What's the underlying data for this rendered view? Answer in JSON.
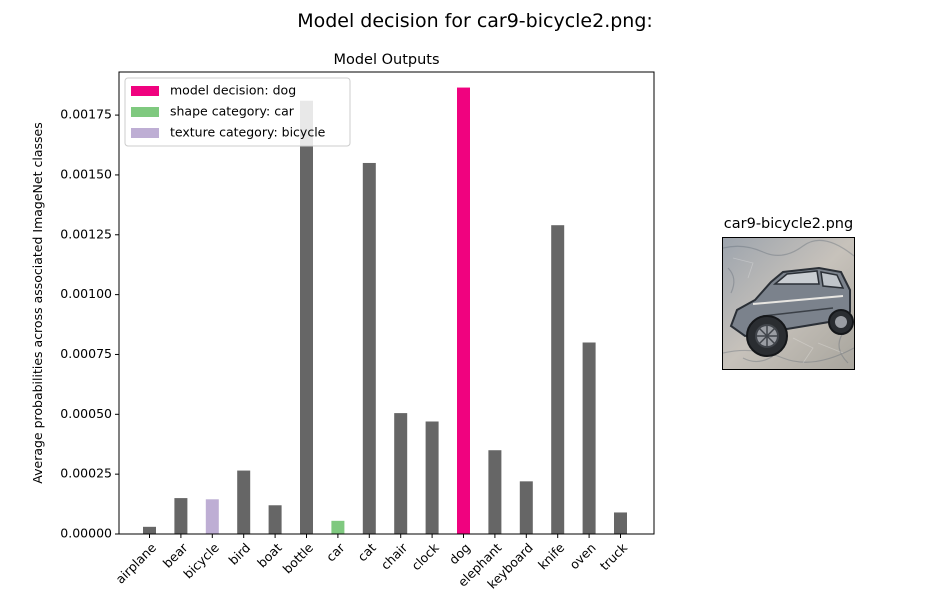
{
  "figure": {
    "suptitle": "Model decision for car9-bicycle2.png:"
  },
  "image_panel": {
    "title": "car9-bicycle2.png",
    "image_description_icon": "stylized-car-photo"
  },
  "chart_data": {
    "type": "bar",
    "title": "Model Outputs",
    "xlabel": "",
    "ylabel": "Average probabilities across associated ImageNet classes",
    "ylim": [
      0,
      0.00193
    ],
    "yticks": [
      "0.00000",
      "0.00025",
      "0.00050",
      "0.00075",
      "0.00100",
      "0.00125",
      "0.00150",
      "0.00175"
    ],
    "categories": [
      "airplane",
      "bear",
      "bicycle",
      "bird",
      "boat",
      "bottle",
      "car",
      "cat",
      "chair",
      "clock",
      "dog",
      "elephant",
      "keyboard",
      "knife",
      "oven",
      "truck"
    ],
    "values": [
      3e-05,
      0.00015,
      0.000145,
      0.000265,
      0.00012,
      0.00181,
      5.5e-05,
      0.00155,
      0.000505,
      0.00047,
      0.001865,
      0.00035,
      0.00022,
      0.00129,
      0.0008,
      9e-05
    ],
    "bar_roles": [
      "other",
      "other",
      "texture",
      "other",
      "other",
      "other",
      "shape",
      "other",
      "other",
      "other",
      "decision",
      "other",
      "other",
      "other",
      "other",
      "other"
    ],
    "colors": {
      "other": "#666666",
      "decision": "#f0027f",
      "shape": "#7fc97f",
      "texture": "#beaed4"
    },
    "legend": {
      "placement": "upper-left",
      "entries": [
        {
          "label": "model decision: dog",
          "color": "#f0027f"
        },
        {
          "label": "shape category: car",
          "color": "#7fc97f"
        },
        {
          "label": "texture category: bicycle",
          "color": "#beaed4"
        }
      ]
    },
    "grid": false
  }
}
